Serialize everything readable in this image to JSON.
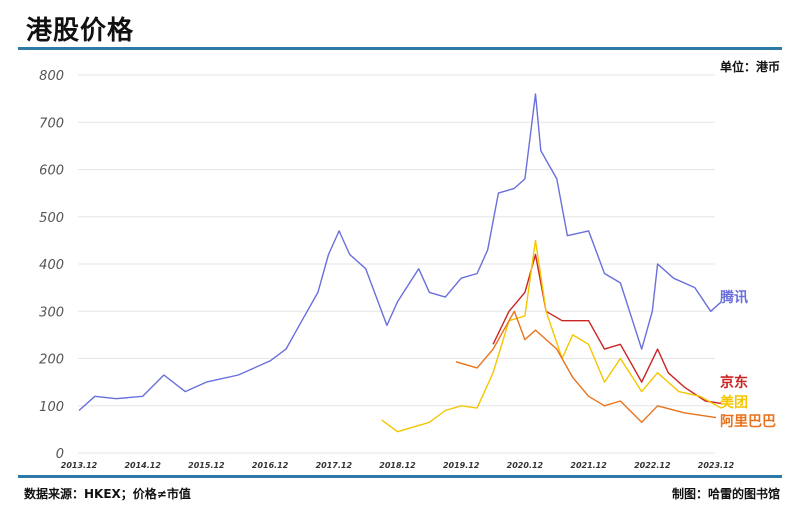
{
  "header": {
    "title": "港股价格",
    "unit": "单位：港币"
  },
  "footer": {
    "source": "数据来源：HKEX；价格≠市值",
    "credit": "制图：哈雷的图书馆"
  },
  "chart_data": {
    "type": "line",
    "title": "港股价格",
    "ylabel": "",
    "xlabel": "",
    "ylim": [
      0,
      800
    ],
    "yticks": [
      "0",
      "100",
      "200",
      "300",
      "400",
      "500",
      "600",
      "700",
      "800"
    ],
    "xticks": [
      "2013.12",
      "2014.12",
      "2015.12",
      "2016.12",
      "2017.12",
      "2018.12",
      "2019.12",
      "2020.12",
      "2021.12",
      "2022.12",
      "2023.12"
    ],
    "grid": "horizontal",
    "legend": "inline-right",
    "series": [
      {
        "name": "腾讯",
        "color": "#6a6fdc",
        "x": [
          "2013-12",
          "2014-03",
          "2014-07",
          "2014-12",
          "2015-04",
          "2015-08",
          "2015-12",
          "2016-06",
          "2016-12",
          "2017-03",
          "2017-06",
          "2017-09",
          "2017-11",
          "2018-01",
          "2018-03",
          "2018-06",
          "2018-10",
          "2018-12",
          "2019-04",
          "2019-06",
          "2019-09",
          "2019-12",
          "2020-03",
          "2020-05",
          "2020-07",
          "2020-10",
          "2020-12",
          "2021-02",
          "2021-03",
          "2021-06",
          "2021-08",
          "2021-12",
          "2022-03",
          "2022-06",
          "2022-10",
          "2022-12",
          "2023-01",
          "2023-04",
          "2023-08",
          "2023-11",
          "2024-01"
        ],
        "y": [
          90,
          120,
          115,
          120,
          165,
          130,
          150,
          165,
          195,
          220,
          280,
          340,
          420,
          470,
          420,
          390,
          270,
          320,
          390,
          340,
          330,
          370,
          380,
          430,
          550,
          560,
          580,
          760,
          640,
          580,
          460,
          470,
          380,
          360,
          220,
          300,
          400,
          370,
          350,
          300,
          320
        ]
      },
      {
        "name": "京东",
        "color": "#cc2424",
        "x": [
          "2020-06",
          "2020-09",
          "2020-12",
          "2021-02",
          "2021-04",
          "2021-07",
          "2021-12",
          "2022-03",
          "2022-06",
          "2022-10",
          "2023-01",
          "2023-03",
          "2023-06",
          "2023-10",
          "2024-01"
        ],
        "y": [
          230,
          300,
          340,
          420,
          300,
          280,
          280,
          220,
          230,
          150,
          220,
          170,
          140,
          110,
          105
        ]
      },
      {
        "name": "美团",
        "color": "#f5c600",
        "x": [
          "2018-09",
          "2018-12",
          "2019-06",
          "2019-09",
          "2019-12",
          "2020-03",
          "2020-06",
          "2020-09",
          "2020-12",
          "2021-02",
          "2021-04",
          "2021-07",
          "2021-09",
          "2021-12",
          "2022-03",
          "2022-06",
          "2022-10",
          "2023-01",
          "2023-05",
          "2023-09",
          "2024-01"
        ],
        "y": [
          70,
          45,
          65,
          90,
          100,
          95,
          170,
          280,
          290,
          450,
          300,
          200,
          250,
          230,
          150,
          200,
          130,
          170,
          130,
          120,
          95
        ]
      },
      {
        "name": "阿里巴巴",
        "color": "#e8731c",
        "x": [
          "2019-11",
          "2020-03",
          "2020-06",
          "2020-10",
          "2020-12",
          "2021-02",
          "2021-06",
          "2021-09",
          "2021-12",
          "2022-03",
          "2022-06",
          "2022-10",
          "2023-01",
          "2023-06",
          "2023-12"
        ],
        "y": [
          193,
          180,
          220,
          300,
          240,
          260,
          220,
          160,
          120,
          100,
          110,
          65,
          100,
          85,
          75
        ]
      }
    ]
  }
}
